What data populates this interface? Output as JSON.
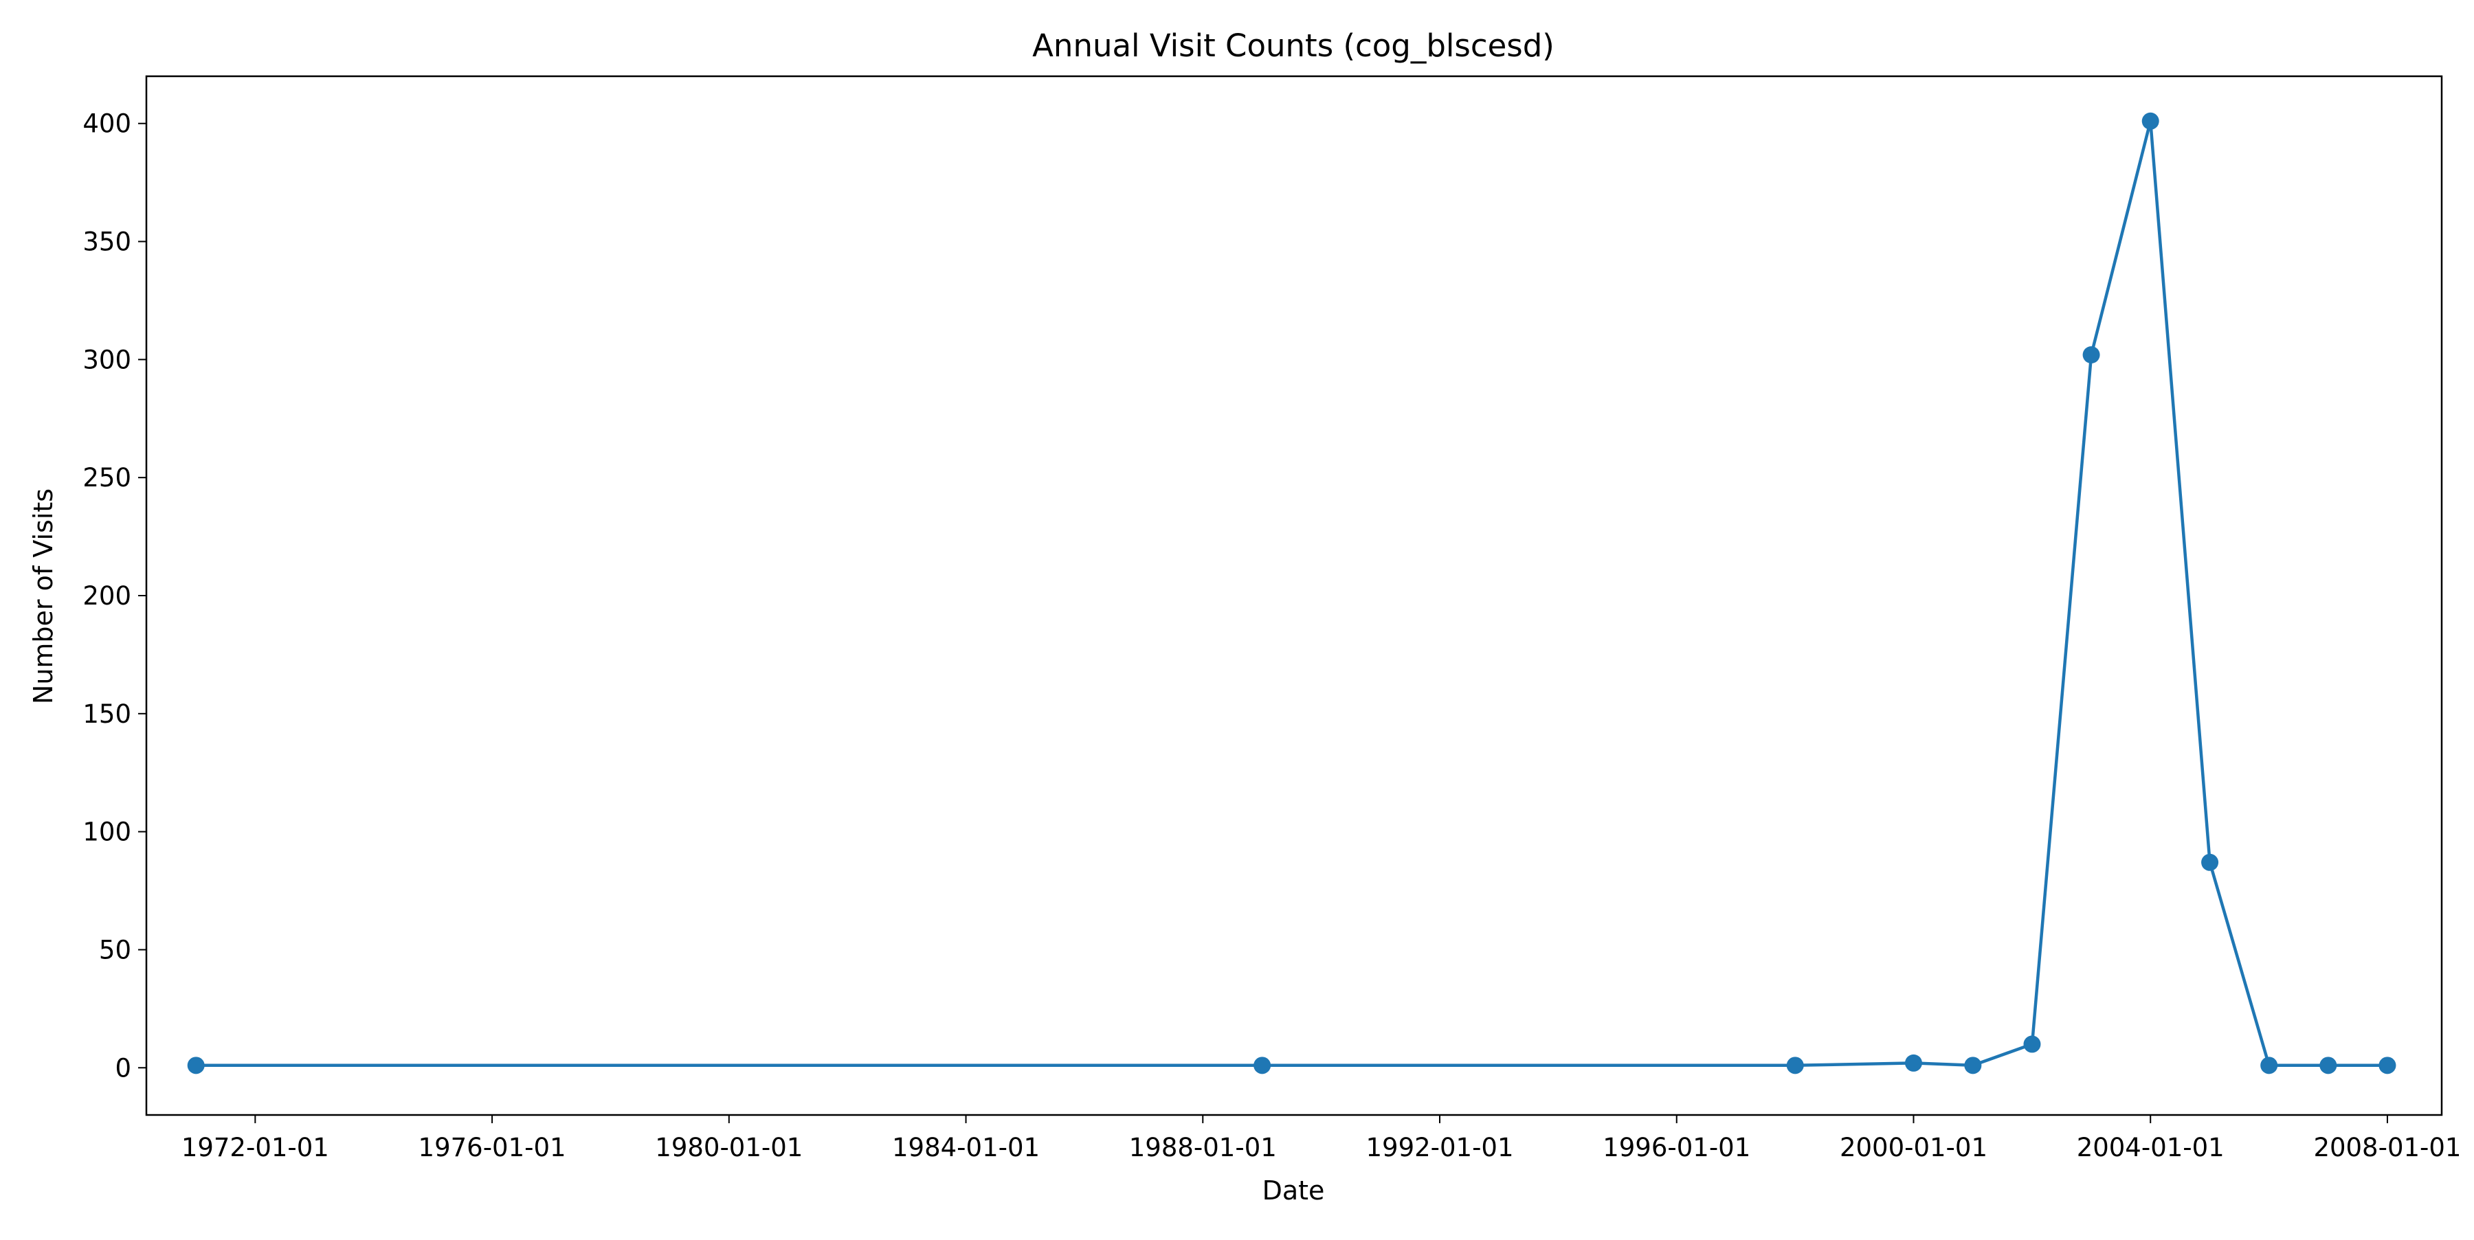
{
  "chart_data": {
    "type": "line",
    "title": "Annual Visit Counts (cog_blscesd)",
    "xlabel": "Date",
    "ylabel": "Number of Visits",
    "x_axis_type": "date",
    "xlim": [
      "1970-03-01",
      "2008-12-01"
    ],
    "ylim": [
      -20,
      420
    ],
    "x_ticks": [
      "1972-01-01",
      "1976-01-01",
      "1980-01-01",
      "1984-01-01",
      "1988-01-01",
      "1992-01-01",
      "1996-01-01",
      "2000-01-01",
      "2004-01-01",
      "2008-01-01"
    ],
    "y_ticks": [
      0,
      50,
      100,
      150,
      200,
      250,
      300,
      350,
      400
    ],
    "grid": false,
    "legend": "none",
    "series": [
      {
        "color": "#1f77b4",
        "marker": "circle",
        "x": [
          "1971-01-01",
          "1989-01-01",
          "1998-01-01",
          "2000-01-01",
          "2001-01-01",
          "2002-01-01",
          "2003-01-01",
          "2004-01-01",
          "2005-01-01",
          "2006-01-01",
          "2007-01-01",
          "2008-01-01"
        ],
        "y": [
          1,
          1,
          1,
          2,
          1,
          10,
          302,
          401,
          87,
          1,
          1,
          1
        ]
      }
    ]
  }
}
